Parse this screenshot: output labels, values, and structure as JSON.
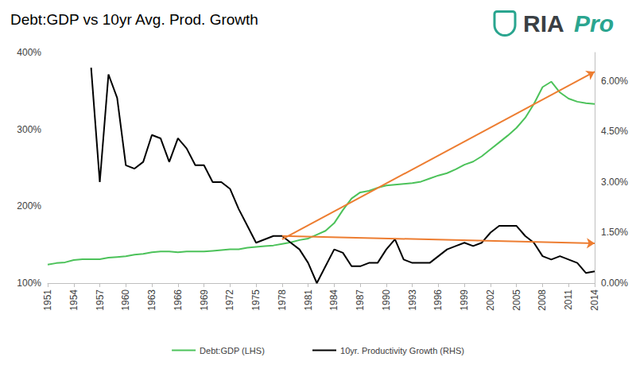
{
  "chart_data": {
    "type": "line",
    "title": "Debt:GDP vs 10yr Avg. Prod. Growth",
    "logo": {
      "text": "RIA",
      "accent": "Pro",
      "color": "#3a3f44",
      "accent_color": "#2aa58f"
    },
    "x": [
      1951,
      1952,
      1953,
      1954,
      1955,
      1956,
      1957,
      1958,
      1959,
      1960,
      1961,
      1962,
      1963,
      1964,
      1965,
      1966,
      1967,
      1968,
      1969,
      1970,
      1971,
      1972,
      1973,
      1974,
      1975,
      1976,
      1977,
      1978,
      1979,
      1980,
      1981,
      1982,
      1983,
      1984,
      1985,
      1986,
      1987,
      1988,
      1989,
      1990,
      1991,
      1992,
      1993,
      1994,
      1995,
      1996,
      1997,
      1998,
      1999,
      2000,
      2001,
      2002,
      2003,
      2004,
      2005,
      2006,
      2007,
      2008,
      2009,
      2010,
      2011,
      2012,
      2013,
      2014
    ],
    "xlim": [
      1951,
      2014
    ],
    "xticks": [
      1951,
      1954,
      1957,
      1960,
      1963,
      1966,
      1969,
      1972,
      1975,
      1978,
      1981,
      1984,
      1987,
      1990,
      1993,
      1996,
      1999,
      2002,
      2005,
      2008,
      2011,
      2014
    ],
    "ylim": [
      100,
      400
    ],
    "yticks": [
      {
        "value": 100,
        "label": "100%"
      },
      {
        "value": 200,
        "label": "200%"
      },
      {
        "value": 300,
        "label": "300%"
      },
      {
        "value": 400,
        "label": "400%"
      }
    ],
    "y2lim": [
      0,
      6.85
    ],
    "y2ticks": [
      {
        "value": 0,
        "label": "0.00%"
      },
      {
        "value": 1.5,
        "label": "1.50%"
      },
      {
        "value": 3,
        "label": "3.00%"
      },
      {
        "value": 4.5,
        "label": "4.50%"
      },
      {
        "value": 6,
        "label": "6.00%"
      }
    ],
    "grid": false,
    "legend": "bottom",
    "series": [
      {
        "name": "Debt:GDP (LHS)",
        "color": "#4cc25a",
        "axis": "y",
        "values": [
          124,
          126,
          127,
          130,
          131,
          131,
          131,
          133,
          134,
          135,
          137,
          138,
          140,
          141,
          141,
          140,
          141,
          141,
          141,
          142,
          143,
          144,
          144,
          146,
          147,
          148,
          149,
          151,
          153,
          156,
          158,
          163,
          168,
          178,
          195,
          210,
          218,
          220,
          224,
          227,
          228,
          229,
          230,
          232,
          236,
          240,
          243,
          248,
          254,
          258,
          265,
          274,
          283,
          292,
          302,
          315,
          333,
          355,
          362,
          348,
          340,
          336,
          334,
          333
        ]
      },
      {
        "name": "10yr. Productivity Growth (RHS)",
        "color": "#000000",
        "axis": "y2",
        "values": [
          null,
          null,
          null,
          null,
          null,
          6.4,
          3.0,
          6.2,
          5.5,
          3.5,
          3.4,
          3.6,
          4.4,
          4.3,
          3.6,
          4.3,
          4.0,
          3.5,
          3.5,
          3.0,
          3.0,
          2.8,
          2.2,
          1.7,
          1.2,
          1.3,
          1.4,
          1.4,
          1.2,
          1.0,
          0.6,
          0.0,
          0.5,
          1.0,
          0.9,
          0.5,
          0.5,
          0.6,
          0.6,
          1.0,
          1.3,
          0.7,
          0.6,
          0.6,
          0.6,
          0.8,
          1.0,
          1.1,
          1.2,
          1.1,
          1.2,
          1.5,
          1.7,
          1.7,
          1.7,
          1.4,
          1.2,
          0.8,
          0.7,
          0.8,
          0.7,
          0.6,
          0.3,
          0.35
        ]
      }
    ],
    "arrows": [
      {
        "axis": "y",
        "from": [
          1978,
          157
        ],
        "to": [
          2014,
          375
        ],
        "color": "#ed7d31"
      },
      {
        "axis": "y2",
        "from": [
          1978,
          1.4
        ],
        "to": [
          2014,
          1.18
        ],
        "color": "#ed7d31"
      }
    ]
  }
}
